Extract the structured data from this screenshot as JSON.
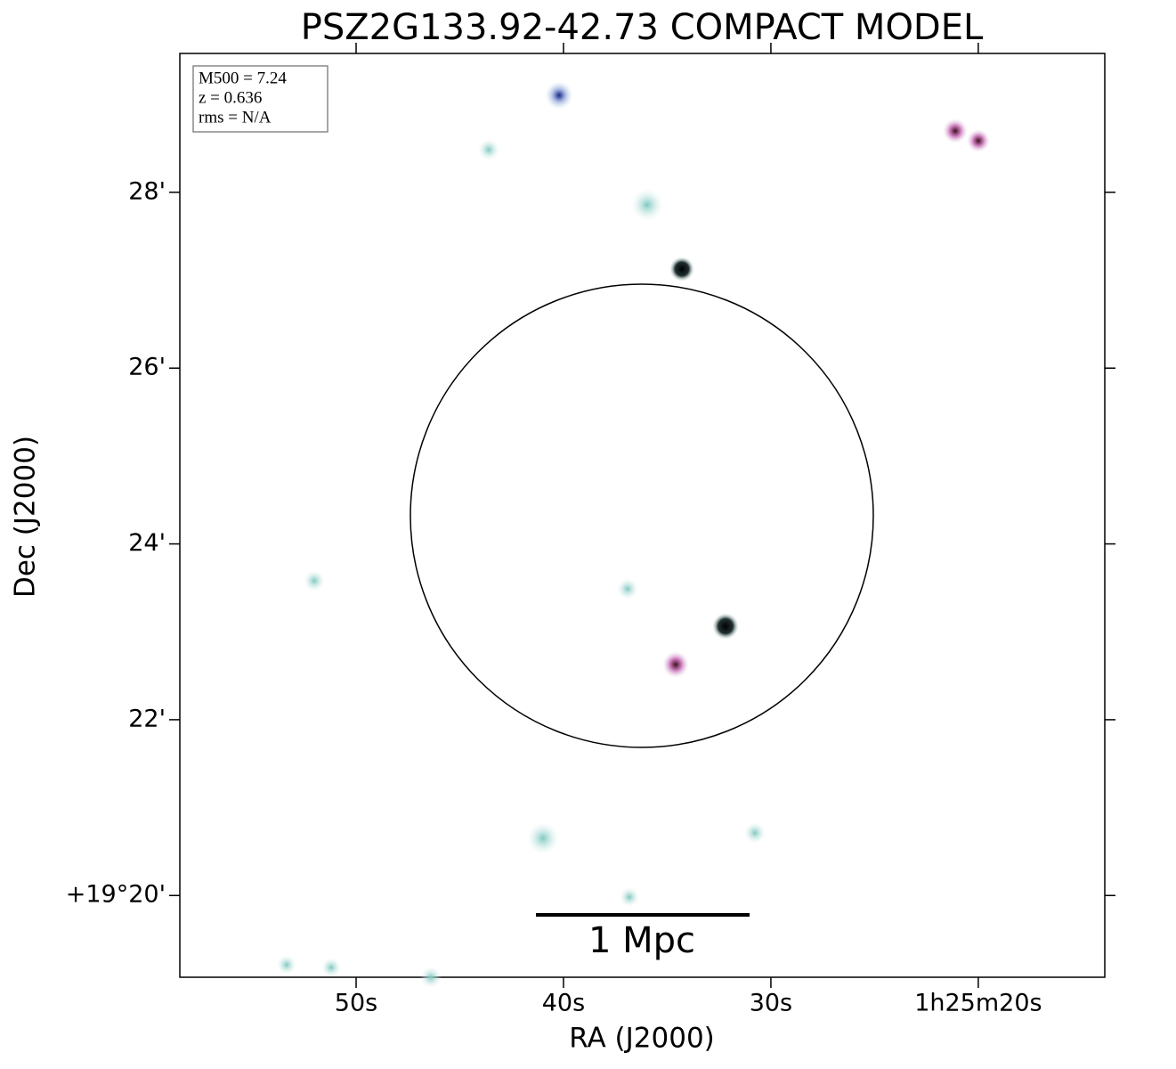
{
  "chart_data": {
    "type": "image",
    "title": "PSZ2G133.92-42.73 COMPACT MODEL",
    "info": [
      "M500 = 7.24",
      "z = 0.636",
      "rms = N/A"
    ],
    "xlabel": "RA (J2000)",
    "ylabel": "Dec (J2000)",
    "xlim": [
      58.5,
      13.9
    ],
    "xticks": [
      {
        "value": 50,
        "label": "50s"
      },
      {
        "value": 40,
        "label": "40s"
      },
      {
        "value": 30,
        "label": "30s"
      },
      {
        "value": 20,
        "label": "1h25m20s"
      }
    ],
    "ylim": [
      19.07,
      29.58
    ],
    "yticks": [
      {
        "value": 28,
        "label": "28'"
      },
      {
        "value": 26,
        "label": "26'"
      },
      {
        "value": 24,
        "label": "24'"
      },
      {
        "value": 22,
        "label": "22'"
      },
      {
        "value": 20,
        "label": "+19°20'"
      }
    ],
    "scalebar_label": "1 Mpc"
  }
}
